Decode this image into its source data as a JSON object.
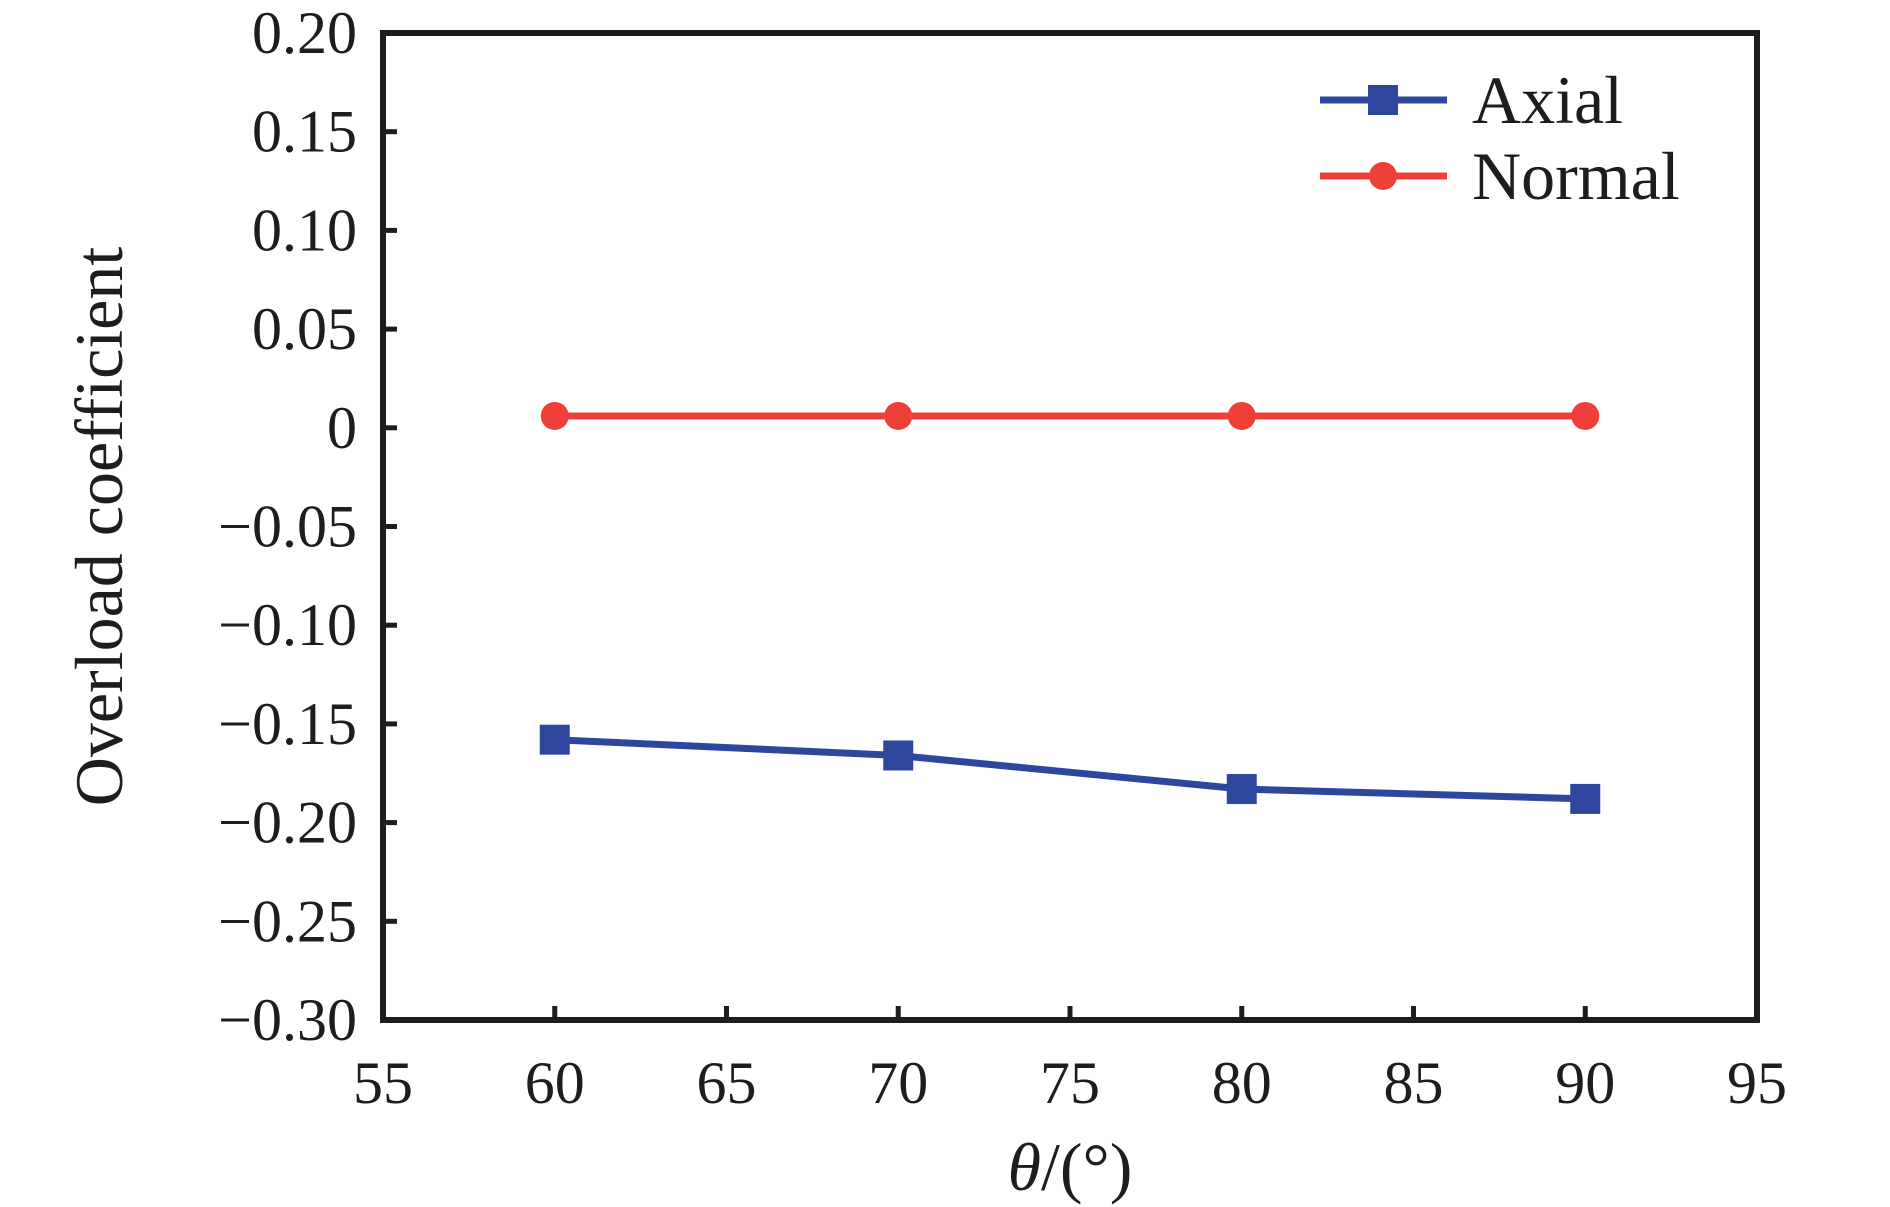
{
  "chart_data": {
    "type": "line",
    "title": "",
    "xlabel": "θ/(°)",
    "ylabel": "Overload coefficient",
    "x": [
      60,
      70,
      80,
      90
    ],
    "series": [
      {
        "name": "Axial",
        "values": [
          -0.158,
          -0.166,
          -0.183,
          -0.188
        ],
        "color": "#2D479E",
        "marker": "square"
      },
      {
        "name": "Normal",
        "values": [
          0.006,
          0.006,
          0.006,
          0.006
        ],
        "color": "#EE4038",
        "marker": "circle"
      }
    ],
    "xlim": [
      55,
      95
    ],
    "ylim": [
      -0.3,
      0.2
    ],
    "xticks": [
      55,
      60,
      65,
      70,
      75,
      80,
      85,
      90,
      95
    ],
    "yticks": [
      0.2,
      0.15,
      0.1,
      0.05,
      0,
      -0.05,
      -0.1,
      -0.15,
      -0.2,
      -0.25,
      -0.3
    ],
    "ytick_labels": [
      "0.20",
      "0.15",
      "0.10",
      "0.05",
      "0",
      "−0.05",
      "−0.10",
      "−0.15",
      "−0.20",
      "−0.25",
      "−0.30"
    ],
    "xtick_labels": [
      "55",
      "60",
      "65",
      "70",
      "75",
      "80",
      "85",
      "90",
      "95"
    ],
    "grid": false,
    "legend_position": "top-right",
    "legend_border": false,
    "axis_color": "#1d1d1d",
    "background": "#ffffff"
  }
}
